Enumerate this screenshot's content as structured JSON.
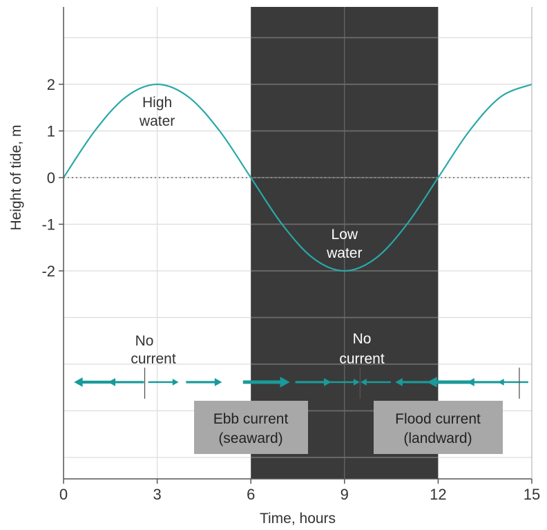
{
  "chart_data": {
    "type": "line",
    "title": "",
    "xlabel": "Time, hours",
    "ylabel": "Height of tide, m",
    "xlim": [
      0,
      15
    ],
    "ylim": [
      -2,
      2
    ],
    "x_ticks": [
      "0",
      "3",
      "6",
      "9",
      "12",
      "15"
    ],
    "y_ticks": [
      "2",
      "1",
      "0",
      "-1",
      "-2"
    ],
    "grid": true,
    "shaded_region": {
      "x_from": 6,
      "x_to": 12
    },
    "series": [
      {
        "x": [
          0,
          1,
          2,
          3,
          4,
          5,
          6,
          7,
          8,
          9,
          10,
          11,
          12,
          13,
          14,
          15
        ],
        "y": [
          0,
          1.0,
          1.73,
          2.0,
          1.73,
          1.0,
          0,
          -1.0,
          -1.73,
          -2.0,
          -1.73,
          -1.0,
          0,
          1.0,
          1.73,
          2.0
        ]
      }
    ],
    "annotations": {
      "high_water": [
        "High",
        "water"
      ],
      "low_water": [
        "Low",
        "water"
      ],
      "no_current_1": [
        "No",
        "current"
      ],
      "no_current_2": [
        "No",
        "current"
      ],
      "ebb": [
        "Ebb current",
        "(seaward)"
      ],
      "flood": [
        "Flood current",
        "(landward)"
      ]
    },
    "current_arrows": [
      {
        "x": 1.0,
        "dir": "left",
        "strength": 3
      },
      {
        "x": 2.0,
        "dir": "left",
        "strength": 2
      },
      {
        "x": 3.2,
        "dir": "right",
        "strength": 1
      },
      {
        "x": 4.5,
        "dir": "right",
        "strength": 2
      },
      {
        "x": 6.5,
        "dir": "right",
        "strength": 4
      },
      {
        "x": 8.0,
        "dir": "right",
        "strength": 2
      },
      {
        "x": 9.0,
        "dir": "right",
        "strength": 1
      },
      {
        "x": 10.0,
        "dir": "left",
        "strength": 1
      },
      {
        "x": 11.2,
        "dir": "left",
        "strength": 2
      },
      {
        "x": 12.4,
        "dir": "left",
        "strength": 4
      },
      {
        "x": 13.5,
        "dir": "left",
        "strength": 2
      },
      {
        "x": 14.4,
        "dir": "left",
        "strength": 1
      }
    ],
    "slack_markers": [
      2.6,
      9.5,
      14.6
    ],
    "colors": {
      "curve": "#2aa8a8",
      "shade": "#3a3a3a",
      "box": "#a8a8a8",
      "arrow": "#1a9a9a"
    }
  }
}
